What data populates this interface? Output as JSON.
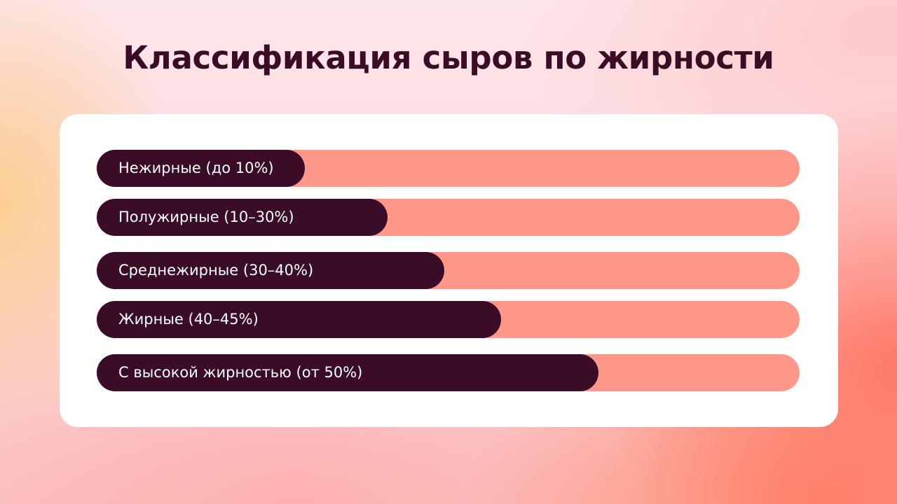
{
  "colors": {
    "title": "#3a0d25",
    "fill": "#3a0c28",
    "track": "#fe9787",
    "card": "#ffffff"
  },
  "chart_data": {
    "type": "bar",
    "orientation": "horizontal",
    "title": "Классификация сыров по жирности",
    "xlabel": "",
    "ylabel": "",
    "xlim": [
      0,
      100
    ],
    "grid": false,
    "legend": "none",
    "categories": [
      "Нежирные (до 10%)",
      "Полужирные (10–30%)",
      "Среднежирные (30–40%)",
      "Жирные (40–45%)",
      "С высокой жирностью (от 50%)"
    ],
    "values": [
      29.6,
      41.4,
      49.5,
      57.5,
      71.4
    ]
  }
}
